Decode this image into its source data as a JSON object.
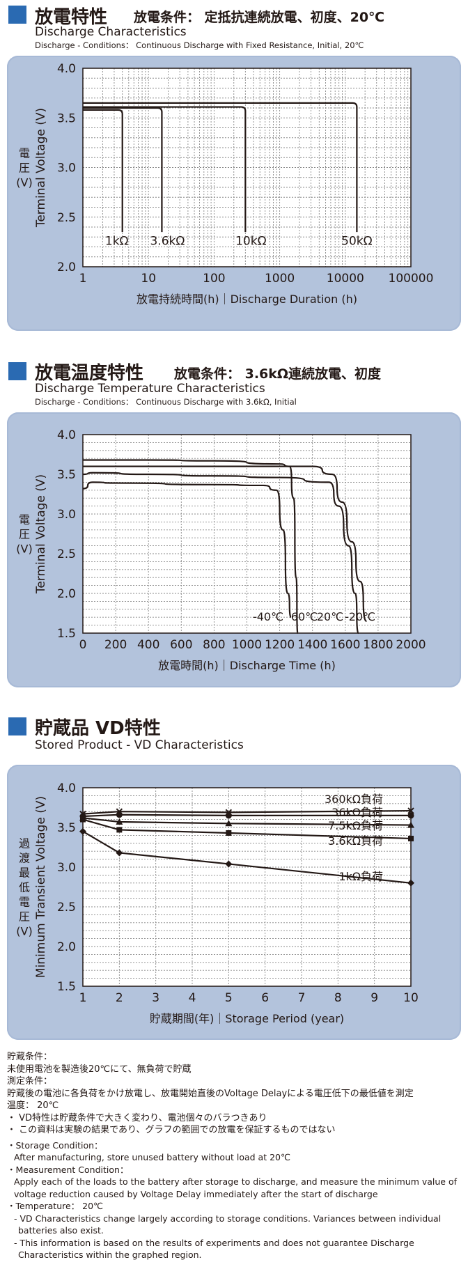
{
  "colors": {
    "accent": "#2a6ab2",
    "panel": "#b3c3dc",
    "line": "#231815",
    "grid": "#777777"
  },
  "section1": {
    "title_jp": "放電特性",
    "condition_jp": "放電条件： 定抵抗連続放電、初度、20℃",
    "title_en": "Discharge Characteristics",
    "subtitle_en": "Discharge - Conditions： Continuous Discharge with Fixed Resistance, Initial, 20℃"
  },
  "section2": {
    "title_jp": "放電温度特性",
    "condition_jp": "放電条件： 3.6kΩ連続放電、初度",
    "title_en": "Discharge Temperature Characteristics",
    "subtitle_en": "Discharge - Conditions： Continuous Discharge with 3.6kΩ, Initial"
  },
  "section3": {
    "title_jp": "貯蔵品 VD特性",
    "title_en": "Stored Product - VD Characteristics"
  },
  "chart_data": [
    {
      "type": "line",
      "xscale": "log",
      "xlim": [
        1,
        100000
      ],
      "ylim": [
        2.0,
        4.0
      ],
      "xticks": [
        "1",
        "10",
        "100",
        "1000",
        "10000",
        "100000"
      ],
      "yticks": [
        "2.0",
        "2.5",
        "3.0",
        "3.5",
        "4.0"
      ],
      "xlabel": "放電持続時間(h)｜Discharge Duration (h)",
      "ylabel_jp": [
        "電",
        "圧",
        "(V)"
      ],
      "ylabel_en": "Terminal Voltage (V)",
      "series": [
        {
          "name": "1kΩ",
          "x": [
            1,
            4,
            4
          ],
          "y": [
            3.58,
            3.58,
            2.35
          ]
        },
        {
          "name": "3.6kΩ",
          "x": [
            1,
            16,
            16
          ],
          "y": [
            3.6,
            3.6,
            2.35
          ]
        },
        {
          "name": "10kΩ",
          "x": [
            1,
            300,
            300
          ],
          "y": [
            3.61,
            3.61,
            2.35
          ]
        },
        {
          "name": "50kΩ",
          "x": [
            1,
            15000,
            15000
          ],
          "y": [
            3.65,
            3.65,
            2.35
          ]
        }
      ]
    },
    {
      "type": "line",
      "xlim": [
        0,
        2000
      ],
      "ylim": [
        1.5,
        4.0
      ],
      "xticks": [
        "0",
        "200",
        "400",
        "600",
        "800",
        "1000",
        "1200",
        "1400",
        "1600",
        "1800",
        "2000"
      ],
      "yticks": [
        "1.5",
        "2.0",
        "2.5",
        "3.0",
        "3.5",
        "4.0"
      ],
      "xlabel": "放電時間(h)｜Discharge Time (h)",
      "ylabel_jp": [
        "電",
        "圧",
        "(V)"
      ],
      "ylabel_en": "Terminal Voltage (V)",
      "series": [
        {
          "name": "-40℃",
          "x": [
            0,
            60,
            200,
            800,
            1100,
            1180,
            1220,
            1250,
            1270
          ],
          "y": [
            3.32,
            3.4,
            3.39,
            3.37,
            3.36,
            3.3,
            2.8,
            2.0,
            1.7
          ]
        },
        {
          "name": "60℃",
          "x": [
            0,
            400,
            800,
            1200,
            1260,
            1285,
            1300,
            1310
          ],
          "y": [
            3.68,
            3.68,
            3.67,
            3.63,
            3.6,
            3.2,
            2.2,
            1.5
          ]
        },
        {
          "name": "20℃",
          "x": [
            0,
            60,
            400,
            800,
            1200,
            1500,
            1560,
            1620,
            1660,
            1680
          ],
          "y": [
            3.5,
            3.52,
            3.5,
            3.48,
            3.46,
            3.4,
            3.1,
            2.6,
            2.0,
            1.5
          ]
        },
        {
          "name": "-20℃",
          "x": [
            0,
            300,
            700,
            1000,
            1400,
            1520,
            1580,
            1640,
            1690,
            1730
          ],
          "y": [
            3.6,
            3.6,
            3.6,
            3.6,
            3.6,
            3.5,
            3.15,
            2.65,
            2.15,
            1.65
          ]
        }
      ]
    },
    {
      "type": "line",
      "xlim": [
        1,
        10
      ],
      "ylim": [
        1.5,
        4.0
      ],
      "xticks": [
        "1",
        "2",
        "3",
        "4",
        "5",
        "6",
        "7",
        "8",
        "9",
        "10"
      ],
      "yticks": [
        "1.5",
        "2.0",
        "2.5",
        "3.0",
        "3.5",
        "4.0"
      ],
      "xlabel": "貯蔵期間(年)｜Storage Period (year)",
      "ylabel_jp": [
        "過",
        "渡",
        "最",
        "低",
        "電",
        "圧",
        "(V)"
      ],
      "ylabel_en": "Minimum Transient Voltage (V)",
      "series": [
        {
          "name": "360kΩ負荷",
          "marker": "x",
          "x": [
            1,
            2,
            5,
            10
          ],
          "y": [
            3.67,
            3.7,
            3.69,
            3.71
          ]
        },
        {
          "name": "36kΩ負荷",
          "marker": "o",
          "x": [
            1,
            2,
            5,
            10
          ],
          "y": [
            3.64,
            3.66,
            3.65,
            3.65
          ]
        },
        {
          "name": "7.5kΩ負荷",
          "marker": "^",
          "x": [
            1,
            2,
            5,
            10
          ],
          "y": [
            3.62,
            3.57,
            3.55,
            3.53
          ]
        },
        {
          "name": "3.6kΩ負荷",
          "marker": "s",
          "x": [
            1,
            2,
            5,
            10
          ],
          "y": [
            3.6,
            3.47,
            3.43,
            3.36
          ]
        },
        {
          "name": "1kΩ負荷",
          "marker": "d",
          "x": [
            1,
            2,
            5,
            10
          ],
          "y": [
            3.45,
            3.18,
            3.04,
            2.8
          ]
        }
      ]
    }
  ],
  "notes": {
    "jp": [
      "貯蔵条件：",
      "未使用電池を製造後20℃にて、無負荷で貯蔵",
      "測定条件：",
      "貯蔵後の電池に各負荷をかけ放電し、放電開始直後のVoltage Delayによる電圧低下の最低値を測定",
      "温度： 20℃",
      "・ VD特性は貯蔵条件で大きく変わり、電池個々のバラつきあり",
      "・ この資料は実験の結果であり、グラフの範囲での放電を保証するものではない"
    ],
    "en": [
      "・Storage Condition：",
      "After manufacturing, store unused battery without load at 20℃",
      "・Measurement Condition：",
      "Apply each of the loads to the battery after storage to discharge, and measure the minimum value of",
      "voltage reduction caused by Voltage Delay immediately after the start of discharge",
      "・Temperature： 20℃",
      "- VD Characteristics change largely according to storage conditions. Variances between individual",
      "batteries also exist.",
      "- This information is based on the results of experiments and does not guarantee Discharge",
      "Characteristics within the graphed region."
    ]
  }
}
